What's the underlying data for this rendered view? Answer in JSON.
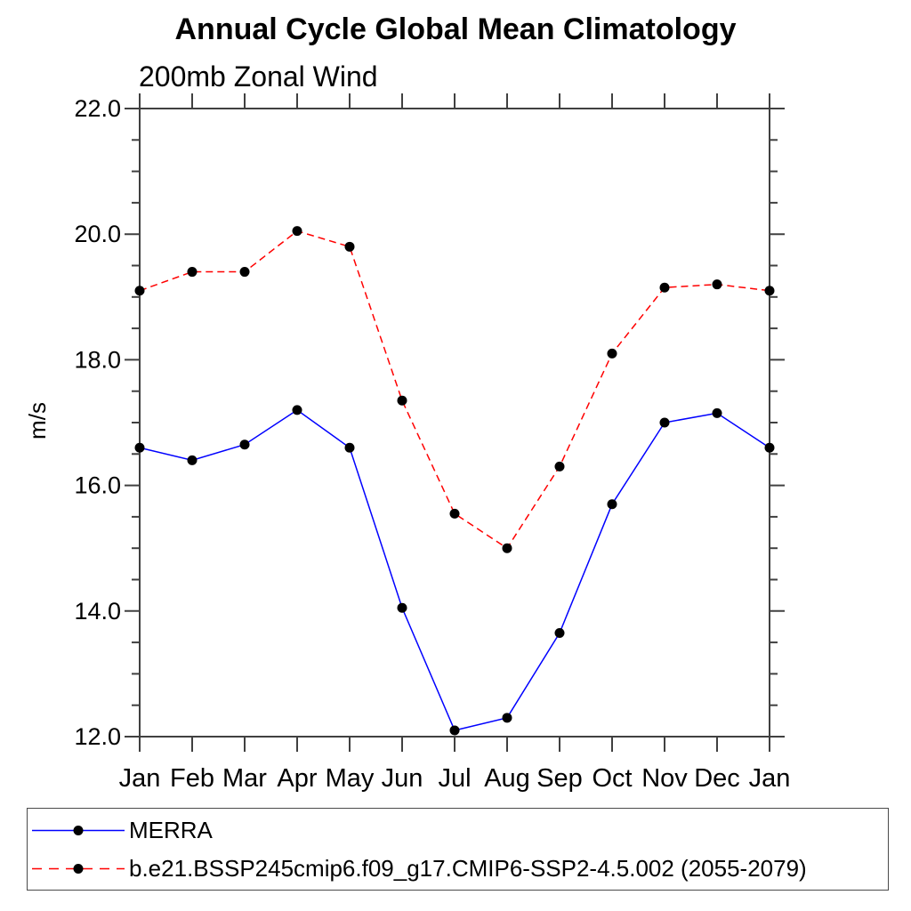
{
  "header": {
    "title": "Annual Cycle Global Mean Climatology",
    "subtitle": "200mb Zonal Wind"
  },
  "colors": {
    "merra_line": "#0000ff",
    "model_line": "#ff0000",
    "marker": "#000000",
    "axis": "#404040",
    "text": "#000000"
  },
  "legend": {
    "items": [
      {
        "label": "MERRA",
        "color": "#0000ff",
        "line": "solid",
        "marker": "circle"
      },
      {
        "label": "b.e21.BSSP245cmip6.f09_g17.CMIP6-SSP2-4.5.002 (2055-2079)",
        "color": "#ff0000",
        "line": "dashed",
        "marker": "circle"
      }
    ]
  },
  "chart_data": {
    "type": "line",
    "title": "Annual Cycle Global Mean Climatology",
    "subtitle": "200mb Zonal Wind",
    "xlabel": "",
    "ylabel": "m/s",
    "categories": [
      "Jan",
      "Feb",
      "Mar",
      "Apr",
      "May",
      "Jun",
      "Jul",
      "Aug",
      "Sep",
      "Oct",
      "Nov",
      "Dec",
      "Jan"
    ],
    "ylim": [
      12.0,
      22.0
    ],
    "ytick_major_step": 2.0,
    "ytick_minor_step": 0.5,
    "ytick_labels": [
      "12.0",
      "14.0",
      "16.0",
      "18.0",
      "20.0",
      "22.0"
    ],
    "grid": false,
    "legend_position": "bottom",
    "series": [
      {
        "name": "MERRA",
        "color": "#0000ff",
        "line": "solid",
        "marker": "circle",
        "values": [
          16.6,
          16.4,
          16.65,
          17.2,
          16.6,
          14.05,
          12.1,
          12.3,
          13.65,
          15.7,
          17.0,
          17.15,
          16.6
        ]
      },
      {
        "name": "b.e21.BSSP245cmip6.f09_g17.CMIP6-SSP2-4.5.002 (2055-2079)",
        "color": "#ff0000",
        "line": "dashed",
        "marker": "circle",
        "values": [
          19.1,
          19.4,
          19.4,
          20.05,
          19.8,
          17.35,
          15.55,
          15.0,
          16.3,
          18.1,
          19.15,
          19.2,
          19.1
        ]
      }
    ]
  }
}
